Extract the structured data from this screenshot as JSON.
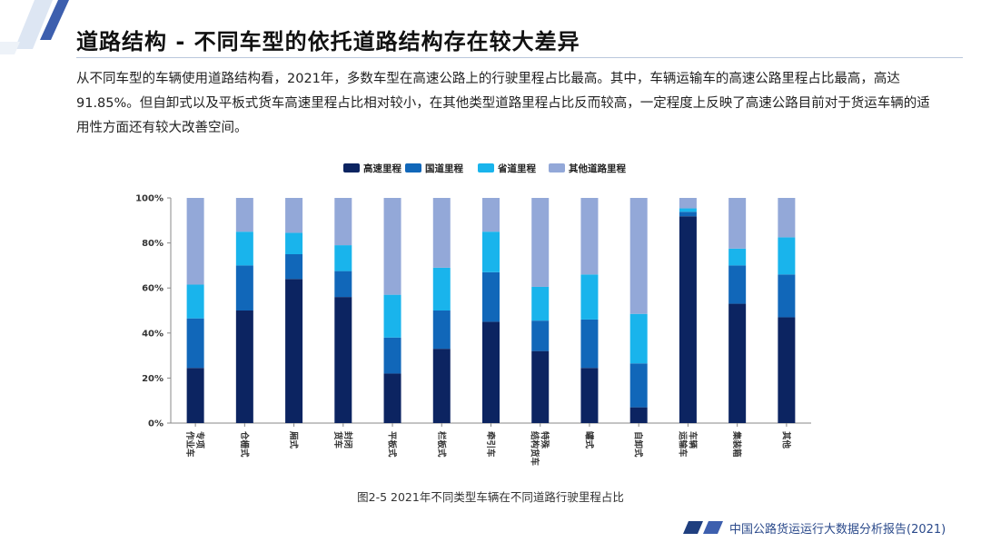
{
  "page": {
    "title": "道路结构 - 不同车型的依托道路结构存在较大差异",
    "body": "从不同车型的车辆使用道路结构看，2021年，多数车型在高速公路上的行驶里程占比最高。其中，车辆运输车的高速公路里程占比最高，高达 91.85%。但自卸式以及平板式货车高速里程占比相对较小，在其他类型道路里程占比反而较高，一定程度上反映了高速公路目前对于货运车辆的适用性方面还有较大改善空间。",
    "caption": "图2-5 2021年不同类型车辆在不同道路行驶里程占比",
    "footer": "中国公路货运运行大数据分析报告(2021)"
  },
  "colors": {
    "accent": "#2b4a8b",
    "series": [
      "#0c2461",
      "#1167b9",
      "#19b4ec",
      "#93a8d8"
    ]
  },
  "chart_data": {
    "type": "bar",
    "stacked": true,
    "title": "",
    "xlabel": "",
    "ylabel": "",
    "ylim": [
      0,
      100
    ],
    "yticks": [
      "0%",
      "20%",
      "40%",
      "60%",
      "80%",
      "100%"
    ],
    "legend_position": "top",
    "grid": false,
    "categories": [
      "专项作业车",
      "仓栅式",
      "厢式",
      "封闭货车",
      "平板式",
      "栏板式",
      "牵引车",
      "特殊结构货车",
      "罐式",
      "自卸式",
      "车辆运输车",
      "集装箱",
      "其他"
    ],
    "category_lines": [
      [
        "专项",
        "作业车"
      ],
      [
        "仓栅式"
      ],
      [
        "厢式"
      ],
      [
        "封闭",
        "货车"
      ],
      [
        "平板式"
      ],
      [
        "栏板式"
      ],
      [
        "牵引车"
      ],
      [
        "特殊",
        "结构货车"
      ],
      [
        "罐式"
      ],
      [
        "自卸式"
      ],
      [
        "车辆",
        "运输车"
      ],
      [
        "集装箱"
      ],
      [
        "其他"
      ]
    ],
    "series": [
      {
        "name": "高速里程",
        "values": [
          24.5,
          50,
          64,
          56,
          22,
          33,
          45,
          32,
          24.5,
          7,
          91.85,
          53,
          47
        ]
      },
      {
        "name": "国道里程",
        "values": [
          22,
          20,
          11,
          11.5,
          16,
          17,
          22,
          13.5,
          21.5,
          19.5,
          2,
          17,
          19
        ]
      },
      {
        "name": "省道里程",
        "values": [
          15,
          15,
          9.5,
          11.5,
          19,
          19,
          18,
          15,
          20,
          22,
          1.5,
          7.5,
          16.5
        ]
      },
      {
        "name": "其他道路里程",
        "values": [
          38.5,
          15,
          15.5,
          21,
          43,
          31,
          15,
          39.5,
          34,
          51.5,
          4.65,
          22.5,
          17.5
        ]
      }
    ]
  }
}
